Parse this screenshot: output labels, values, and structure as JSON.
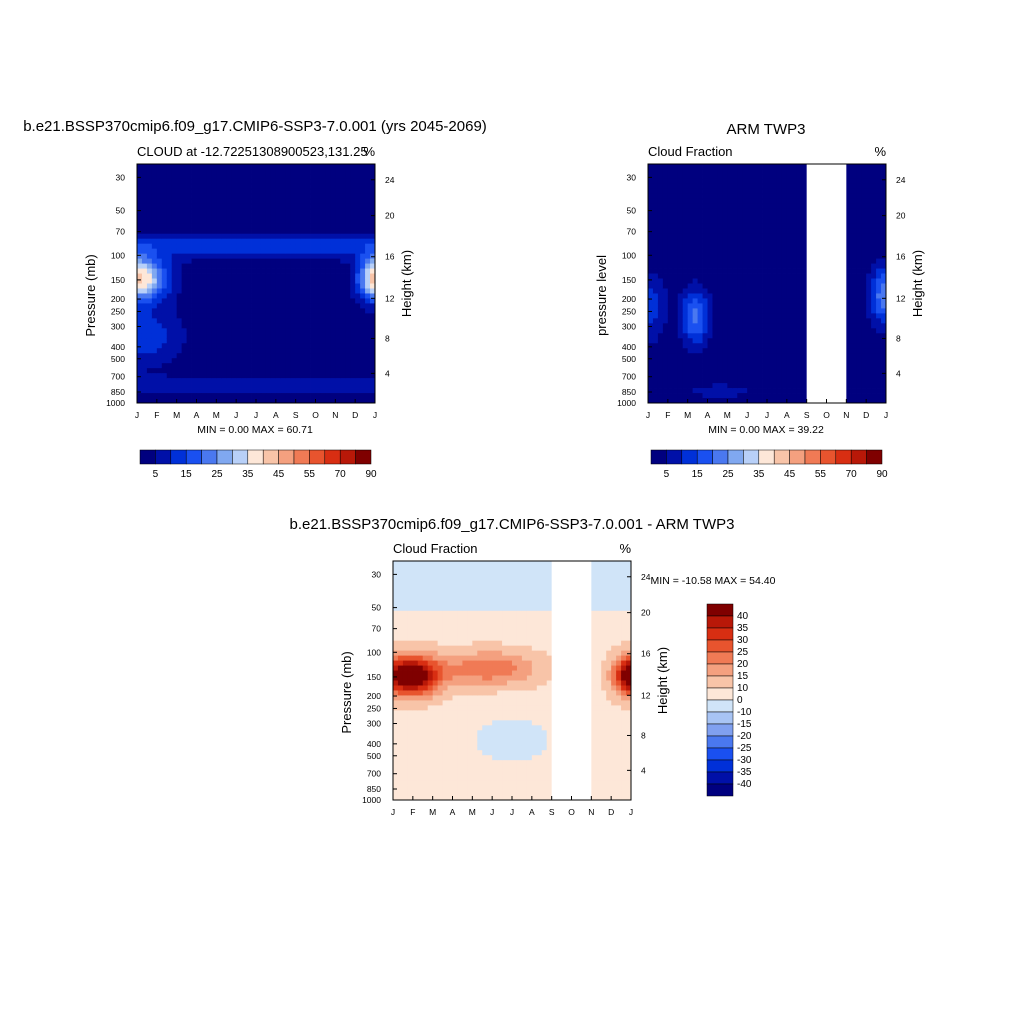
{
  "chart_data": [
    {
      "type": "heatmap",
      "title": "b.e21.BSSP370cmip6.f09_g17.CMIP6-SSP3-7.0.001 (yrs 2045-2069)",
      "subtitle_left": "CLOUD at -12.72251308900523,131.25",
      "subtitle_right": "%",
      "ylabel": "Pressure (mb)",
      "ylabel_right": "Height (km)",
      "xticks": [
        "J",
        "F",
        "M",
        "A",
        "M",
        "J",
        "J",
        "A",
        "S",
        "O",
        "N",
        "D",
        "J"
      ],
      "yticks": [
        "30",
        "50",
        "70",
        "100",
        "150",
        "200",
        "250",
        "300",
        "400",
        "500",
        "700",
        "850",
        "1000"
      ],
      "yticks_right": [
        "24",
        "20",
        "16",
        "12",
        "8",
        "4"
      ],
      "stats": "MIN =   0.00 MAX =  60.71",
      "colorbar_labels": [
        "5",
        "15",
        "25",
        "35",
        "45",
        "55",
        "70",
        "90"
      ],
      "colorbar_colors": [
        "#00007f",
        "#0010a8",
        "#0030d8",
        "#1a50f0",
        "#4a78f0",
        "#80a8f0",
        "#b8d0f8",
        "#fde7d8",
        "#f8c4a8",
        "#f4a07f",
        "#f07a55",
        "#e8542e",
        "#d82e12",
        "#b81808",
        "#7f0000"
      ],
      "peak_value": 60.71
    },
    {
      "type": "heatmap",
      "title": "ARM TWP3",
      "subtitle_left": "Cloud Fraction",
      "subtitle_right": "%",
      "ylabel": "pressure level",
      "ylabel_right": "Height (km)",
      "xticks": [
        "J",
        "F",
        "M",
        "A",
        "M",
        "J",
        "J",
        "A",
        "S",
        "O",
        "N",
        "D",
        "J"
      ],
      "yticks": [
        "30",
        "50",
        "70",
        "100",
        "150",
        "200",
        "250",
        "300",
        "400",
        "500",
        "700",
        "850",
        "1000"
      ],
      "yticks_right": [
        "24",
        "20",
        "16",
        "12",
        "8",
        "4"
      ],
      "stats": "MIN =   0.00 MAX =  39.22",
      "colorbar_labels": [
        "5",
        "15",
        "25",
        "35",
        "45",
        "55",
        "70",
        "90"
      ],
      "colorbar_colors": [
        "#00007f",
        "#0010a8",
        "#0030d8",
        "#1a50f0",
        "#4a78f0",
        "#80a8f0",
        "#b8d0f8",
        "#fde7d8",
        "#f8c4a8",
        "#f4a07f",
        "#f07a55",
        "#e8542e",
        "#d82e12",
        "#b81808",
        "#7f0000"
      ],
      "missing_months": [
        "S",
        "O",
        "N"
      ],
      "peak_value": 39.22
    },
    {
      "type": "heatmap",
      "title": "b.e21.BSSP370cmip6.f09_g17.CMIP6-SSP3-7.0.001 - ARM TWP3",
      "subtitle_left": "Cloud Fraction",
      "subtitle_right": "%",
      "ylabel": "Pressure (mb)",
      "ylabel_right": "Height (km)",
      "xticks": [
        "J",
        "F",
        "M",
        "A",
        "M",
        "J",
        "J",
        "A",
        "S",
        "O",
        "N",
        "D",
        "J"
      ],
      "yticks": [
        "30",
        "50",
        "70",
        "100",
        "150",
        "200",
        "250",
        "300",
        "400",
        "500",
        "700",
        "850",
        "1000"
      ],
      "yticks_right": [
        "24",
        "20",
        "16",
        "12",
        "8",
        "4"
      ],
      "stats": "MIN = -10.58 MAX =  54.40",
      "colorbar_labels": [
        "40",
        "35",
        "30",
        "25",
        "20",
        "15",
        "10",
        "0",
        "-10",
        "-15",
        "-20",
        "-25",
        "-30",
        "-35",
        "-40"
      ],
      "colorbar_colors": [
        "#7f0000",
        "#b81808",
        "#d82e12",
        "#e8542e",
        "#f07a55",
        "#f4a07f",
        "#f8c4a8",
        "#fde7d8",
        "#d0e4f8",
        "#a8c4f4",
        "#80a0f0",
        "#4a78f0",
        "#1a50f0",
        "#0030d8",
        "#0010a8",
        "#00007f"
      ],
      "missing_months": [
        "S",
        "O",
        "N"
      ],
      "peak_value": 54.4
    }
  ]
}
